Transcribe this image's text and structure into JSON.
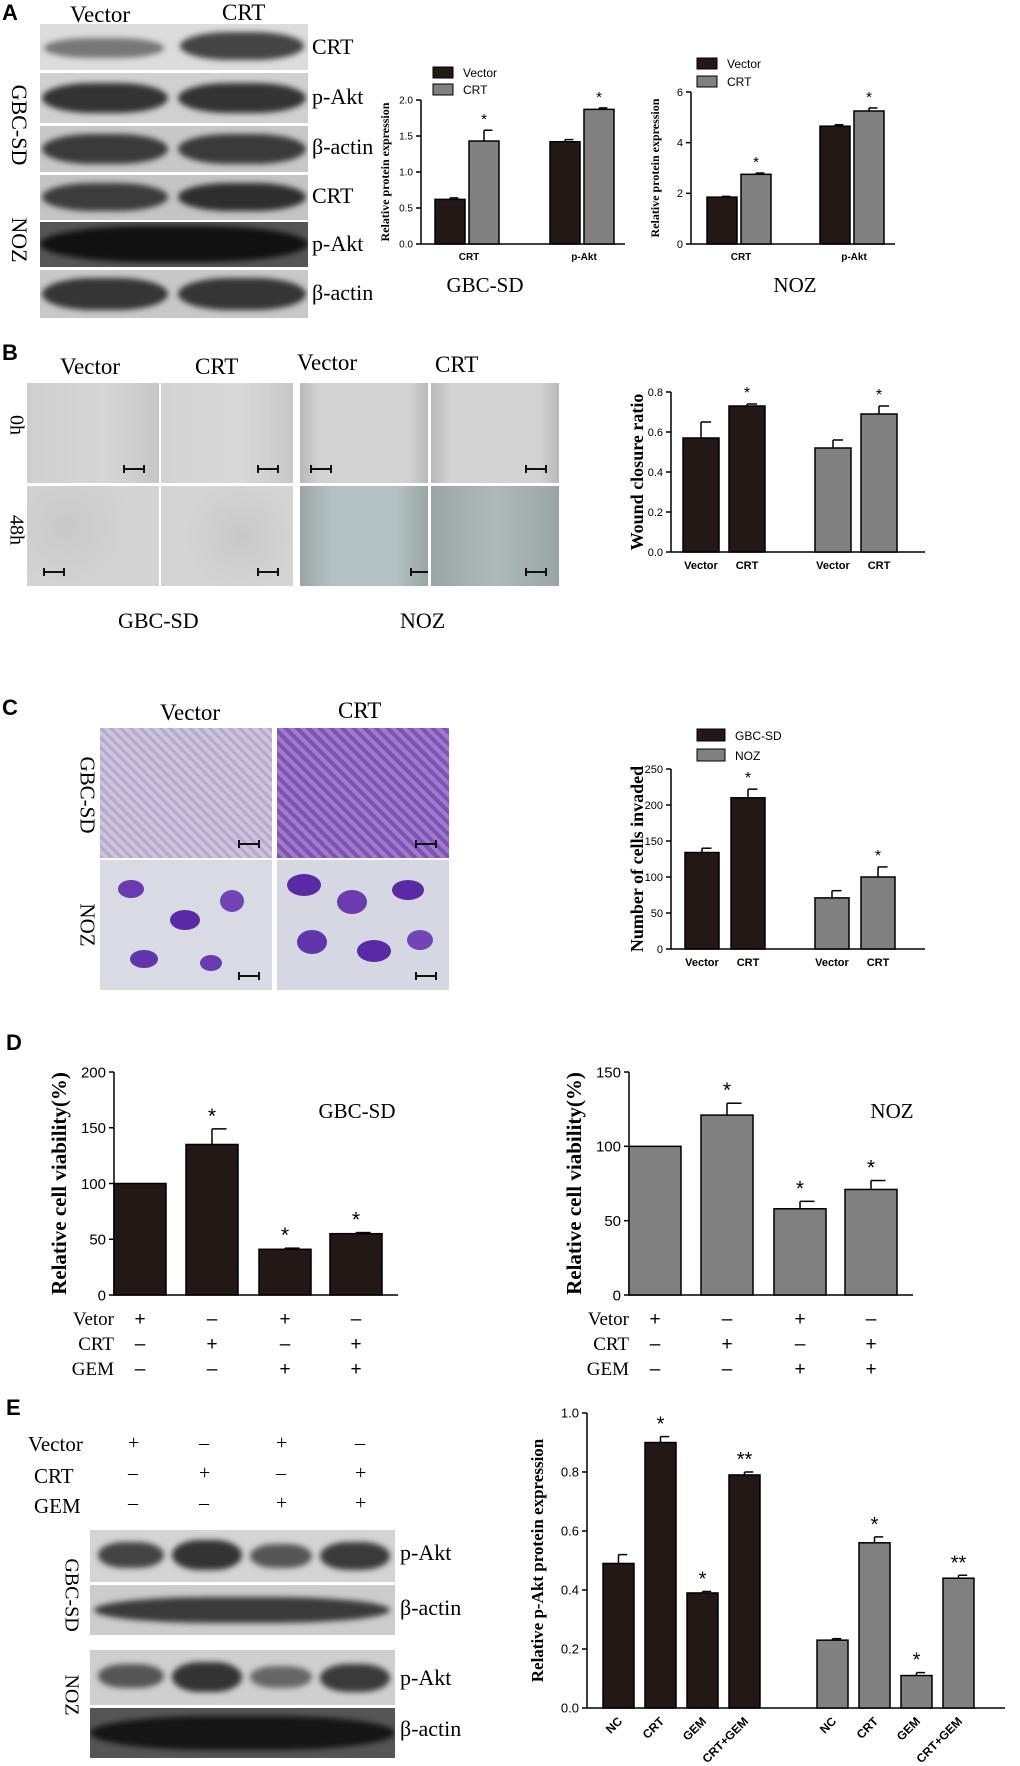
{
  "panels": {
    "A": {
      "label": "A",
      "blot_headers": [
        "Vector",
        "CRT"
      ],
      "cell_lines": [
        "GBC-SD",
        "NOZ"
      ],
      "bands_gbc": [
        "CRT",
        "p-Akt",
        "β-actin"
      ],
      "bands_noz": [
        "CRT",
        "p-Akt",
        "β-actin"
      ]
    },
    "B": {
      "label": "B",
      "col_headers": [
        "Vector",
        "CRT",
        "Vector",
        "CRT"
      ],
      "row_labels": [
        "0h",
        "48h"
      ],
      "captions": [
        "GBC-SD",
        "NOZ"
      ]
    },
    "C": {
      "label": "C",
      "col_headers": [
        "Vector",
        "CRT"
      ],
      "row_labels": [
        "GBC-SD",
        "NOZ"
      ]
    },
    "D": {
      "label": "D",
      "treatments": [
        "Vetor",
        "CRT",
        "GEM"
      ],
      "signs": [
        [
          "+",
          "–",
          "+",
          "–"
        ],
        [
          "–",
          "+",
          "–",
          "+"
        ],
        [
          "–",
          "–",
          "+",
          "+"
        ]
      ]
    },
    "E": {
      "label": "E",
      "treatments": [
        "Vector",
        "CRT",
        "GEM"
      ],
      "signs": [
        [
          "+",
          "–",
          "+",
          "–"
        ],
        [
          "–",
          "+",
          "–",
          "+"
        ],
        [
          "–",
          "–",
          "+",
          "+"
        ]
      ],
      "cell_lines": [
        "GBC-SD",
        "NOZ"
      ],
      "bands": [
        "p-Akt",
        "β-actin",
        "p-Akt",
        "β-actin"
      ]
    }
  },
  "colors": {
    "dark": "#231815",
    "gray": "#808080"
  },
  "chart_data": [
    {
      "id": "A1",
      "type": "bar",
      "title": "GBC-SD",
      "ylabel": "Relative protein expression",
      "categories": [
        "CRT",
        "p-Akt"
      ],
      "ylim": [
        0,
        2.0
      ],
      "yticks": [
        0.0,
        0.5,
        1.0,
        1.5,
        2.0
      ],
      "legend": "top-left",
      "series": [
        {
          "name": "Vector",
          "color": "#231815",
          "values": [
            0.62,
            1.42
          ],
          "errors": [
            0.02,
            0.03
          ],
          "stars": [
            "",
            ""
          ]
        },
        {
          "name": "CRT",
          "color": "#808080",
          "values": [
            1.43,
            1.87
          ],
          "errors": [
            0.15,
            0.02
          ],
          "stars": [
            "*",
            "*"
          ]
        }
      ]
    },
    {
      "id": "A2",
      "type": "bar",
      "title": "NOZ",
      "ylabel": "Relative protein expression",
      "categories": [
        "CRT",
        "p-Akt"
      ],
      "ylim": [
        0,
        6
      ],
      "yticks": [
        0,
        2,
        4,
        6
      ],
      "legend": "top-left",
      "series": [
        {
          "name": "Vector",
          "color": "#231815",
          "values": [
            1.85,
            4.65
          ],
          "errors": [
            0.03,
            0.06
          ],
          "stars": [
            "",
            ""
          ]
        },
        {
          "name": "CRT",
          "color": "#808080",
          "values": [
            2.75,
            5.25
          ],
          "errors": [
            0.05,
            0.12
          ],
          "stars": [
            "*",
            "*"
          ]
        }
      ]
    },
    {
      "id": "B",
      "type": "bar",
      "ylabel": "Wound closure ratio",
      "ylim": [
        0,
        0.8
      ],
      "yticks": [
        0.0,
        0.2,
        0.4,
        0.6,
        0.8
      ],
      "legend": "top-left",
      "series": [
        {
          "name": "GBC-SD",
          "color": "#231815",
          "categories": [
            "Vector",
            "CRT"
          ],
          "values": [
            0.57,
            0.73
          ],
          "errors": [
            0.08,
            0.01
          ],
          "stars": [
            "",
            "*"
          ]
        },
        {
          "name": "NOZ",
          "color": "#808080",
          "categories": [
            "Vector",
            "CRT"
          ],
          "values": [
            0.52,
            0.69
          ],
          "errors": [
            0.04,
            0.04
          ],
          "stars": [
            "",
            "*"
          ]
        }
      ]
    },
    {
      "id": "C",
      "type": "bar",
      "ylabel": "Number of cells invaded",
      "ylim": [
        0,
        250
      ],
      "yticks": [
        0,
        50,
        100,
        150,
        200,
        250
      ],
      "legend": "top-left",
      "series": [
        {
          "name": "GBC-SD",
          "color": "#231815",
          "categories": [
            "Vector",
            "CRT"
          ],
          "values": [
            134,
            210
          ],
          "errors": [
            6,
            12
          ],
          "stars": [
            "",
            "*"
          ]
        },
        {
          "name": "NOZ",
          "color": "#808080",
          "categories": [
            "Vector",
            "CRT"
          ],
          "values": [
            71,
            100
          ],
          "errors": [
            10,
            14
          ],
          "stars": [
            "",
            "*"
          ]
        }
      ]
    },
    {
      "id": "D1",
      "type": "bar",
      "title": "GBC-SD",
      "ylabel": "Relative cell viability(%)",
      "ylim": [
        0,
        200
      ],
      "yticks": [
        0,
        50,
        100,
        150,
        200
      ],
      "series": [
        {
          "color": "#231815",
          "values": [
            100,
            135,
            41,
            55
          ],
          "errors": [
            0,
            14,
            1,
            1
          ],
          "stars": [
            "",
            "*",
            "*",
            "*"
          ]
        }
      ]
    },
    {
      "id": "D2",
      "type": "bar",
      "title": "NOZ",
      "ylabel": "Relative cell viability(%)",
      "ylim": [
        0,
        150
      ],
      "yticks": [
        0,
        50,
        100,
        150
      ],
      "series": [
        {
          "color": "#808080",
          "values": [
            100,
            121,
            58,
            71
          ],
          "errors": [
            0,
            8,
            5,
            6
          ],
          "stars": [
            "",
            "*",
            "*",
            "*"
          ]
        }
      ]
    },
    {
      "id": "E",
      "type": "bar",
      "ylabel": "Relative p-Akt protein expression",
      "ylim": [
        0,
        1.0
      ],
      "yticks": [
        0.0,
        0.2,
        0.4,
        0.6,
        0.8,
        1.0
      ],
      "legend": "top-left",
      "series": [
        {
          "name": "GBC-SD",
          "color": "#231815",
          "categories": [
            "NC",
            "CRT",
            "GEM",
            "CRT+GEM"
          ],
          "values": [
            0.49,
            0.9,
            0.39,
            0.79
          ],
          "errors": [
            0.03,
            0.02,
            0.005,
            0.01
          ],
          "stars": [
            "",
            "*",
            "*",
            "**"
          ]
        },
        {
          "name": "NOZ",
          "color": "#808080",
          "categories": [
            "NC",
            "CRT",
            "GEM",
            "CRT+GEM"
          ],
          "values": [
            0.23,
            0.56,
            0.11,
            0.44
          ],
          "errors": [
            0.005,
            0.02,
            0.01,
            0.01
          ],
          "stars": [
            "",
            "*",
            "*",
            "**"
          ]
        }
      ]
    }
  ]
}
